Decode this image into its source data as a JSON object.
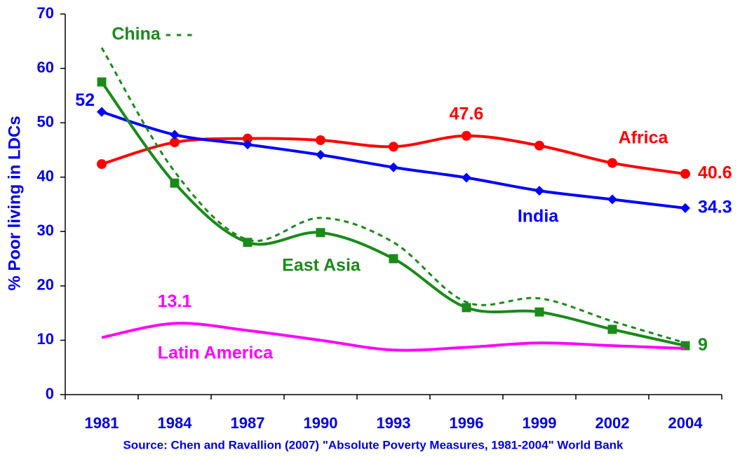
{
  "chart_data": {
    "type": "line",
    "y_label": "% Poor living in LDCs",
    "source": "Source: Chen and Ravallion (2007) \"Absolute Poverty Measures, 1981-2004\" World Bank",
    "categories": [
      "1981",
      "1984",
      "1987",
      "1990",
      "1993",
      "1996",
      "1999",
      "2002",
      "2004"
    ],
    "ylim": [
      0,
      70
    ],
    "yticks": [
      0,
      10,
      20,
      30,
      40,
      50,
      60,
      70
    ],
    "series": [
      {
        "name": "Africa",
        "color": "#ff0000",
        "marker": "circle",
        "values": [
          42.4,
          46.4,
          47.1,
          46.8,
          45.6,
          47.6,
          45.8,
          42.6,
          40.6
        ]
      },
      {
        "name": "India",
        "color": "#0000ff",
        "marker": "diamond",
        "values": [
          52,
          47.8,
          46,
          44.1,
          41.8,
          39.9,
          37.5,
          35.9,
          34.3
        ]
      },
      {
        "name": "East Asia",
        "color": "#1a8a1a",
        "marker": "square",
        "values": [
          57.5,
          38.9,
          28,
          29.8,
          25,
          16,
          15.2,
          12,
          9
        ]
      },
      {
        "name": "China - - -",
        "color": "#1a8a1a",
        "dashed": true,
        "values": [
          63.8,
          41,
          28.5,
          32.5,
          28,
          17,
          17.7,
          13.5,
          9.5
        ]
      },
      {
        "name": "Latin America",
        "color": "#ff00ff",
        "values": [
          10.5,
          13.1,
          11.8,
          10,
          8.2,
          8.7,
          9.5,
          9,
          8.5
        ]
      }
    ]
  }
}
